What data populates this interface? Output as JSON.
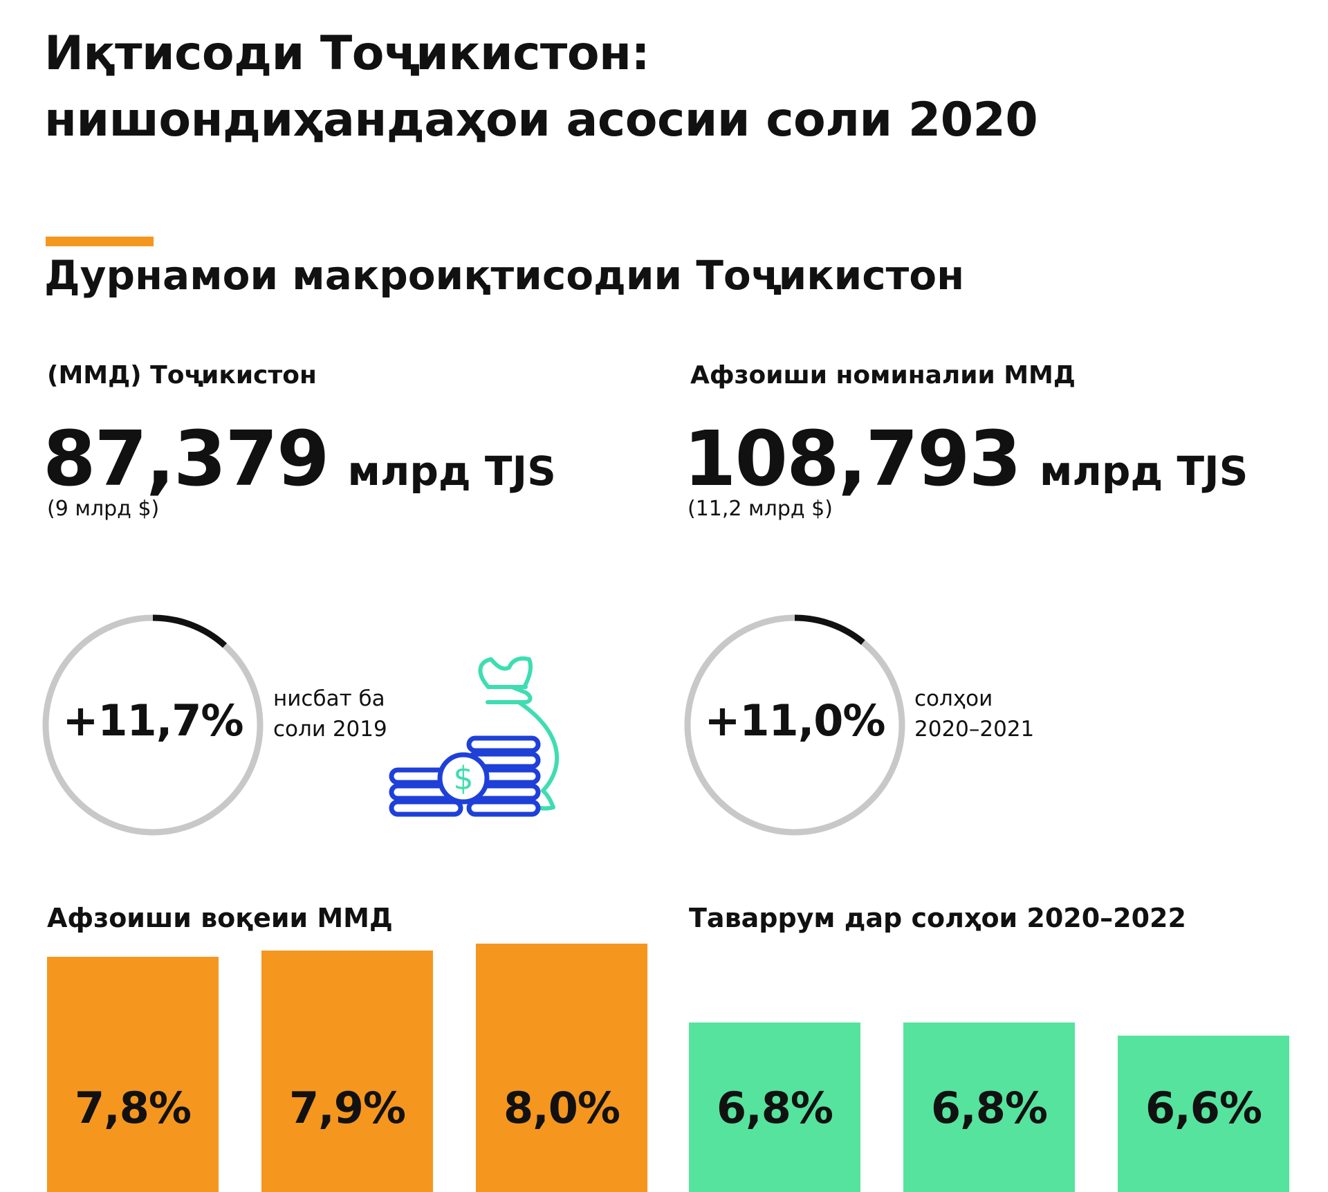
{
  "header": {
    "title_line1": "Иқтисоди Тоҷикистон:",
    "title_line2": "нишондиҳандаҳои асосии соли 2020"
  },
  "section": {
    "title": "Дурнамои макроиқтисодии Тоҷикистон"
  },
  "kpi_left": {
    "label": "(ММД) Тоҷикистон",
    "value": "87,379",
    "unit": "млрд TJS",
    "sub": "(9 млрд $)"
  },
  "kpi_right": {
    "label": "Афзоиши номиналии ММД",
    "value": "108,793",
    "unit": "млрд TJS",
    "sub": "(11,2 млрд $)"
  },
  "gauge_left": {
    "text": "+11,7%",
    "fraction": 0.117,
    "note_line1": "нисбат ба",
    "note_line2": "соли 2019"
  },
  "gauge_right": {
    "text": "+11,0%",
    "fraction": 0.11,
    "note_line1": "солҳои",
    "note_line2": "2020–2021"
  },
  "icons": {
    "money": "money-bag-coins-icon"
  },
  "colors": {
    "accent": "#F5961F",
    "orange_bar": "#F5961F",
    "green_bar": "#56E39D",
    "gauge_track": "#C8C8C8",
    "gauge_progress": "#111111",
    "icon_bag": "#3FDDB1",
    "icon_coins": "#1E40D8"
  },
  "chart_data": [
    {
      "type": "bar",
      "title": "Афзоиши воқеии ММД",
      "categories": [],
      "values": [
        7.8,
        7.9,
        8.0
      ],
      "labels": [
        "7,8%",
        "7,9%",
        "8,0%"
      ],
      "color": "#F5961F"
    },
    {
      "type": "bar",
      "title": "Таваррум дар солҳои 2020–2022",
      "categories": [],
      "values": [
        6.8,
        6.8,
        6.6
      ],
      "labels": [
        "6,8%",
        "6,8%",
        "6,6%"
      ],
      "color": "#56E39D"
    }
  ]
}
